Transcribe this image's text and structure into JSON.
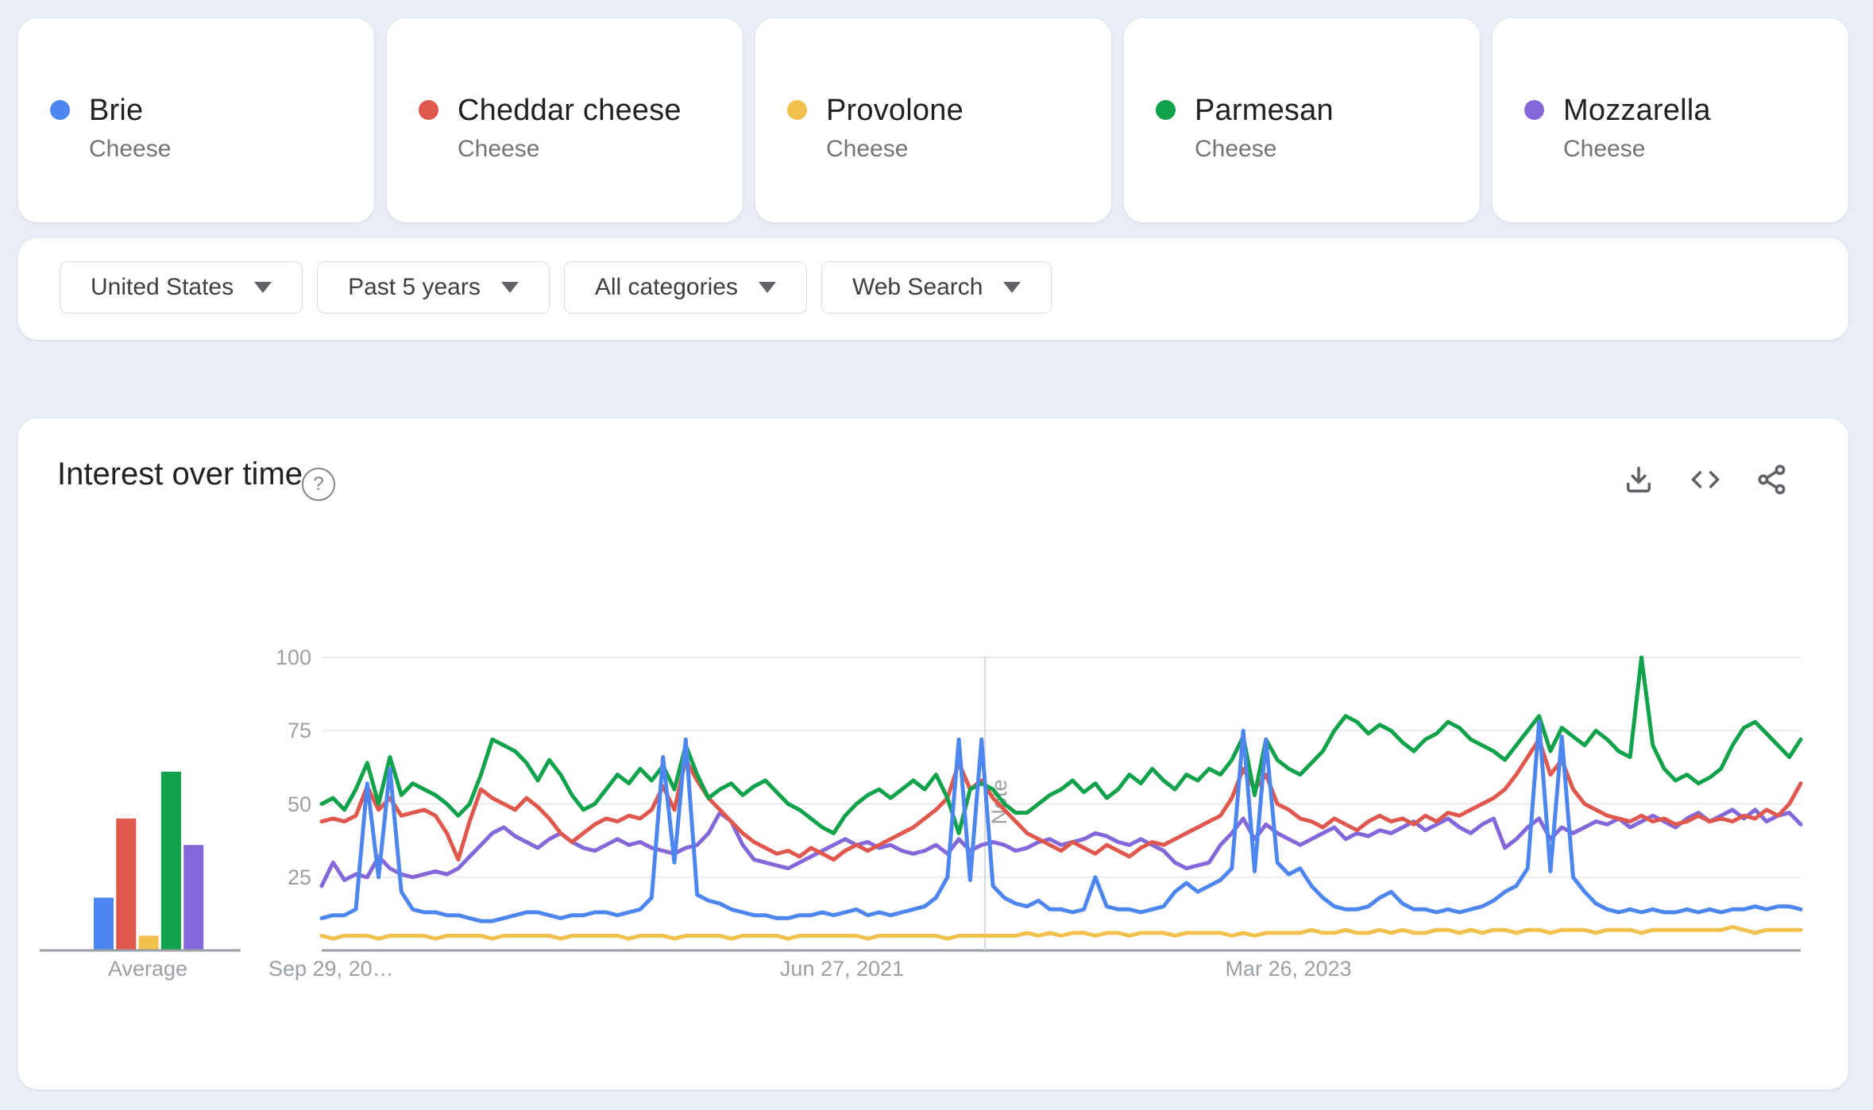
{
  "page": {
    "background": "#e9edf6"
  },
  "term_cards": [
    {
      "term": "Brie",
      "subtitle": "Cheese",
      "color": "#4e86ef"
    },
    {
      "term": "Cheddar cheese",
      "subtitle": "Cheese",
      "color": "#e0584d"
    },
    {
      "term": "Provolone",
      "subtitle": "Cheese",
      "color": "#f2c04d"
    },
    {
      "term": "Parmesan",
      "subtitle": "Cheese",
      "color": "#12a24c"
    },
    {
      "term": "Mozzarella",
      "subtitle": "Cheese",
      "color": "#8468d9"
    }
  ],
  "filters": [
    {
      "label": "United States"
    },
    {
      "label": "Past 5 years"
    },
    {
      "label": "All categories"
    },
    {
      "label": "Web Search"
    }
  ],
  "chart_section": {
    "title": "Interest over time",
    "help_label": "?",
    "icons": [
      "download-icon",
      "embed-icon",
      "share-icon"
    ]
  },
  "chart_data": {
    "type": "line",
    "title": "Interest over time",
    "ylim": [
      0,
      100
    ],
    "grid": true,
    "y_ticks": [
      "100",
      "75",
      "50",
      "25"
    ],
    "x_labels": [
      "Sep 29, 20…",
      "Jun 27, 2021",
      "Mar 26, 2023"
    ],
    "note_marker": {
      "label": "Note"
    },
    "average_label": "Average",
    "average": {
      "categories": [
        "Brie",
        "Cheddar cheese",
        "Provolone",
        "Parmesan",
        "Mozzarella"
      ],
      "values": [
        18,
        45,
        5,
        61,
        36
      ]
    },
    "series": [
      {
        "id": "provolone",
        "name": "Provolone",
        "color": "#f2c04d",
        "values": [
          5,
          4,
          5,
          5,
          5,
          4,
          5,
          5,
          5,
          5,
          4,
          5,
          5,
          5,
          5,
          4,
          5,
          5,
          5,
          5,
          5,
          4,
          5,
          5,
          5,
          5,
          5,
          4,
          5,
          5,
          5,
          4,
          5,
          5,
          5,
          5,
          4,
          5,
          5,
          5,
          5,
          4,
          5,
          5,
          5,
          5,
          5,
          5,
          4,
          5,
          5,
          5,
          5,
          5,
          5,
          4,
          5,
          5,
          5,
          5,
          5,
          5,
          6,
          5,
          6,
          5,
          6,
          6,
          5,
          6,
          6,
          5,
          6,
          6,
          6,
          5,
          6,
          6,
          6,
          6,
          5,
          6,
          5,
          6,
          6,
          6,
          6,
          7,
          6,
          6,
          7,
          6,
          6,
          7,
          6,
          7,
          6,
          6,
          7,
          7,
          6,
          7,
          6,
          7,
          7,
          6,
          7,
          7,
          6,
          7,
          7,
          7,
          6,
          7,
          7,
          7,
          6,
          7,
          7,
          7,
          7,
          7,
          7,
          7,
          8,
          7,
          6,
          7,
          7,
          7,
          7
        ]
      },
      {
        "id": "mozzarella",
        "name": "Mozzarella",
        "color": "#8468d9",
        "values": [
          22,
          30,
          24,
          26,
          25,
          32,
          28,
          26,
          25,
          26,
          27,
          26,
          28,
          32,
          36,
          40,
          42,
          39,
          37,
          35,
          38,
          40,
          37,
          35,
          34,
          36,
          38,
          36,
          37,
          35,
          34,
          33,
          35,
          36,
          40,
          47,
          44,
          36,
          31,
          30,
          29,
          28,
          30,
          32,
          34,
          36,
          38,
          36,
          37,
          35,
          36,
          34,
          33,
          34,
          36,
          33,
          38,
          34,
          36,
          37,
          36,
          34,
          35,
          37,
          38,
          36,
          37,
          38,
          40,
          39,
          37,
          36,
          38,
          36,
          34,
          30,
          28,
          29,
          30,
          36,
          40,
          45,
          38,
          43,
          40,
          38,
          36,
          38,
          40,
          42,
          38,
          40,
          39,
          41,
          40,
          42,
          44,
          41,
          43,
          45,
          42,
          40,
          43,
          45,
          35,
          38,
          42,
          45,
          38,
          42,
          40,
          42,
          44,
          43,
          45,
          42,
          44,
          46,
          44,
          42,
          45,
          47,
          44,
          46,
          48,
          45,
          48,
          44,
          46,
          47,
          43
        ]
      },
      {
        "id": "cheddar",
        "name": "Cheddar cheese",
        "color": "#e0584d",
        "values": [
          44,
          45,
          44,
          46,
          56,
          48,
          52,
          46,
          47,
          48,
          46,
          40,
          31,
          44,
          55,
          52,
          50,
          48,
          52,
          49,
          45,
          40,
          37,
          40,
          43,
          45,
          44,
          46,
          45,
          48,
          56,
          48,
          65,
          58,
          52,
          48,
          44,
          40,
          37,
          35,
          33,
          34,
          32,
          35,
          33,
          31,
          34,
          36,
          34,
          36,
          38,
          40,
          42,
          45,
          48,
          52,
          64,
          55,
          58,
          52,
          48,
          44,
          40,
          38,
          36,
          34,
          37,
          35,
          33,
          36,
          34,
          32,
          35,
          37,
          36,
          38,
          40,
          42,
          44,
          46,
          52,
          62,
          55,
          60,
          50,
          48,
          45,
          44,
          42,
          45,
          43,
          41,
          44,
          46,
          44,
          45,
          43,
          46,
          44,
          47,
          46,
          48,
          50,
          52,
          55,
          60,
          66,
          72,
          60,
          65,
          55,
          50,
          48,
          46,
          45,
          44,
          46,
          44,
          45,
          43,
          44,
          46,
          44,
          45,
          44,
          46,
          45,
          48,
          46,
          50,
          57
        ]
      },
      {
        "id": "parmesan",
        "name": "Parmesan",
        "color": "#12a24c",
        "values": [
          50,
          52,
          48,
          55,
          64,
          50,
          66,
          53,
          57,
          55,
          53,
          50,
          46,
          50,
          60,
          72,
          70,
          68,
          64,
          58,
          65,
          60,
          53,
          48,
          50,
          55,
          60,
          57,
          62,
          58,
          63,
          55,
          70,
          60,
          52,
          55,
          57,
          53,
          56,
          58,
          54,
          50,
          48,
          45,
          42,
          40,
          46,
          50,
          53,
          55,
          52,
          55,
          58,
          55,
          60,
          52,
          40,
          55,
          57,
          55,
          50,
          47,
          47,
          50,
          53,
          55,
          58,
          54,
          57,
          52,
          55,
          60,
          57,
          62,
          58,
          55,
          60,
          58,
          62,
          60,
          65,
          73,
          53,
          72,
          65,
          62,
          60,
          64,
          68,
          75,
          80,
          78,
          74,
          77,
          75,
          71,
          68,
          72,
          74,
          78,
          76,
          72,
          70,
          68,
          65,
          70,
          75,
          80,
          68,
          76,
          73,
          70,
          75,
          72,
          68,
          66,
          100,
          70,
          62,
          58,
          60,
          57,
          59,
          62,
          70,
          76,
          78,
          74,
          70,
          66,
          72
        ]
      },
      {
        "id": "brie",
        "name": "Brie",
        "color": "#4e86ef",
        "values": [
          11,
          12,
          12,
          14,
          57,
          25,
          62,
          20,
          14,
          13,
          13,
          12,
          12,
          11,
          10,
          10,
          11,
          12,
          13,
          13,
          12,
          11,
          12,
          12,
          13,
          13,
          12,
          13,
          14,
          18,
          66,
          30,
          72,
          19,
          17,
          16,
          14,
          13,
          12,
          12,
          11,
          11,
          12,
          12,
          13,
          12,
          13,
          14,
          12,
          13,
          12,
          13,
          14,
          15,
          18,
          25,
          72,
          24,
          72,
          22,
          18,
          16,
          15,
          17,
          14,
          14,
          13,
          14,
          25,
          15,
          14,
          14,
          13,
          14,
          15,
          20,
          23,
          20,
          22,
          24,
          28,
          75,
          27,
          72,
          30,
          26,
          28,
          22,
          18,
          15,
          14,
          14,
          15,
          18,
          20,
          16,
          14,
          14,
          13,
          14,
          13,
          14,
          15,
          17,
          20,
          22,
          28,
          78,
          27,
          73,
          25,
          20,
          16,
          14,
          13,
          14,
          13,
          14,
          13,
          13,
          14,
          13,
          14,
          13,
          14,
          14,
          15,
          14,
          15,
          15,
          14
        ]
      }
    ]
  }
}
